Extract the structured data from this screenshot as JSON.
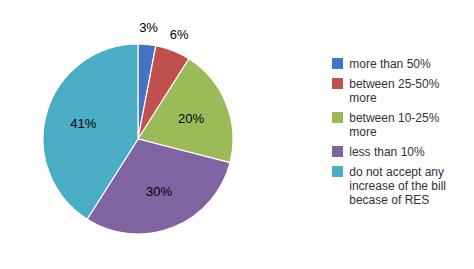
{
  "chart_data": {
    "type": "pie",
    "categories": [
      "more than 50%",
      "between 25-50%\nmore",
      "between 10-25%\nmore",
      "less than 10%",
      "do not accept any\nincrease of the bill\nbecase of RES"
    ],
    "values": [
      3,
      6,
      20,
      30,
      41
    ],
    "value_labels": [
      "3%",
      "6%",
      "20%",
      "30%",
      "41%"
    ],
    "colors": [
      "#4472C4",
      "#C0504D",
      "#9BBB59",
      "#8064A2",
      "#4BACC6"
    ],
    "data_labels": true,
    "legend": "right"
  }
}
